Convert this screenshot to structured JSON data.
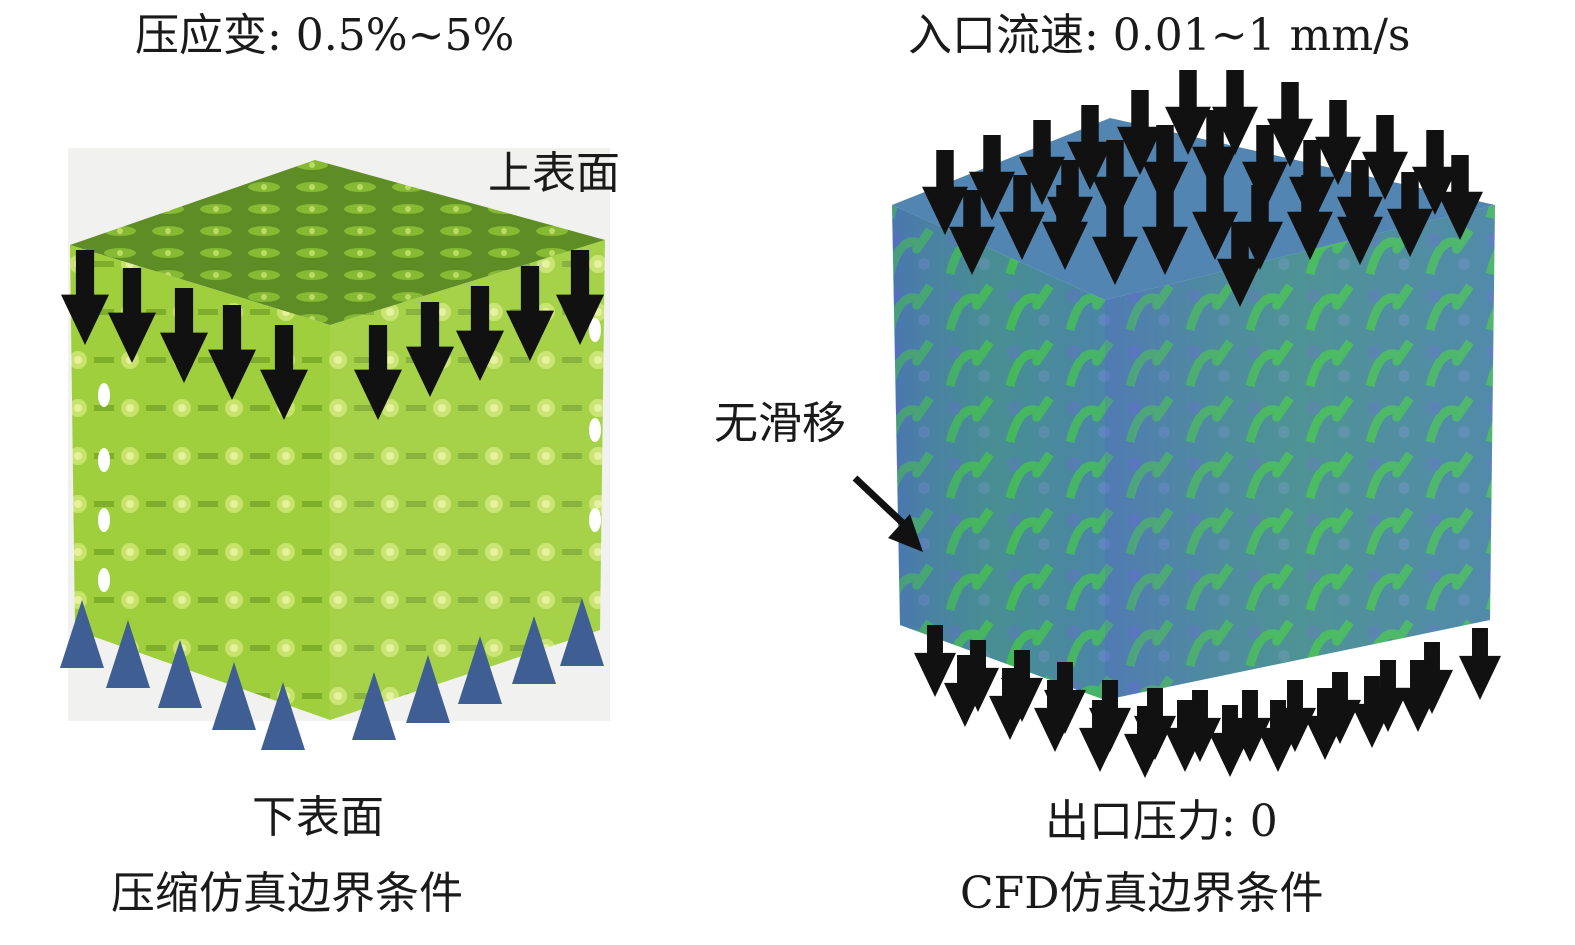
{
  "left": {
    "top_label": "压应变: 0.5%~5%",
    "upper_surface_label": "上表面",
    "lower_surface_label": "下表面",
    "caption": "压缩仿真边界条件",
    "colors": {
      "lattice_light": "#9bc93a",
      "lattice_dark": "#4f7d1f",
      "arrow": "#111111",
      "support": "#3f5e94",
      "background": "#f1f1ef"
    }
  },
  "right": {
    "top_label": "入口流速: 0.01~1 mm/s",
    "side_label": "无滑移",
    "bottom_label": "出口压力: 0",
    "caption": "CFD仿真边界条件",
    "colors": {
      "fluid_blue": "#4c6fb5",
      "fluid_green": "#3fbf4a",
      "arrow": "#111111"
    }
  }
}
